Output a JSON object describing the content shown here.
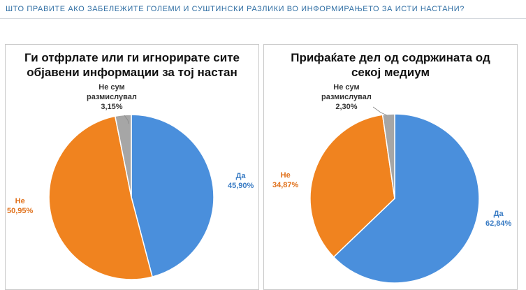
{
  "header": {
    "text": "ШТО ПРАВИТЕ АКО ЗАБЕЛЕЖИТЕ ГОЛЕМИ И СУШТИНСКИ РАЗЛИКИ ВО ИНФОРМИРАЊЕТО ЗА ИСТИ НАСТАНИ?"
  },
  "colors": {
    "yes": "#4a8fdc",
    "no": "#f0831f",
    "na": "#a6a6a6",
    "header_text": "#2f6ea3"
  },
  "chart_data": [
    {
      "type": "pie",
      "title_lines": [
        "Ги отфрлате или ги игнорирате сите",
        "објавени информации за тој настан"
      ],
      "slices": [
        {
          "key": "yes",
          "label": "Да",
          "value": 45.9,
          "value_text": "45,90%"
        },
        {
          "key": "no",
          "label": "Не",
          "value": 50.95,
          "value_text": "50,95%"
        },
        {
          "key": "na",
          "label_lines": [
            "Не сум",
            "размислувал"
          ],
          "value": 3.15,
          "value_text": "3,15%"
        }
      ]
    },
    {
      "type": "pie",
      "title_lines": [
        "Прифаќате дел од содржината од",
        "секој  медиум"
      ],
      "slices": [
        {
          "key": "yes",
          "label": "Да",
          "value": 62.84,
          "value_text": "62,84%"
        },
        {
          "key": "no",
          "label": "Не",
          "value": 34.87,
          "value_text": "34,87%"
        },
        {
          "key": "na",
          "label_lines": [
            "Не сум",
            "размислувал"
          ],
          "value": 2.3,
          "value_text": "2,30%"
        }
      ]
    }
  ]
}
